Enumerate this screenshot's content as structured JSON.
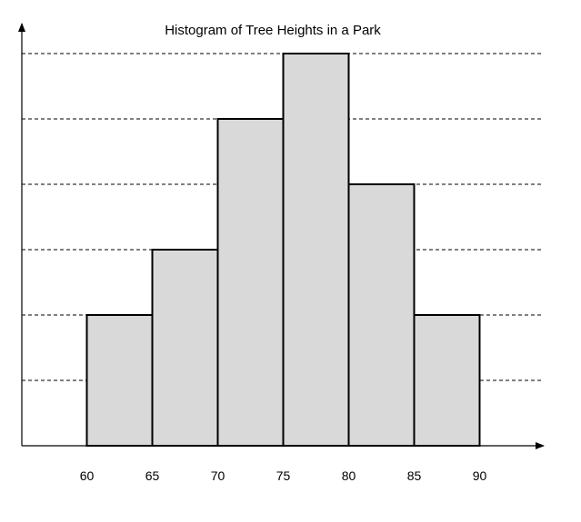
{
  "chart_data": {
    "type": "bar",
    "title": "Histogram of Tree Heights in a Park",
    "xlabel": "",
    "ylabel": "",
    "bin_edges": [
      60,
      65,
      70,
      75,
      80,
      85,
      90
    ],
    "x_ticks": [
      "60",
      "65",
      "70",
      "75",
      "80",
      "85",
      "90"
    ],
    "x_range": [
      55,
      95
    ],
    "values": [
      2,
      3,
      5,
      6,
      4,
      2
    ],
    "ylim": [
      0,
      6
    ],
    "y_tick_labels_shown": false,
    "grid": "horizontal dashed",
    "legend": "none",
    "colors": {
      "bar_fill": "#d9d9d9",
      "bar_stroke": "#000000",
      "grid": "#000000",
      "axis": "#000000"
    }
  }
}
